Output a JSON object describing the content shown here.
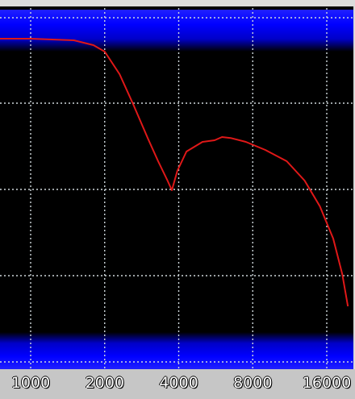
{
  "chart_data": {
    "type": "line",
    "x_scale": "log",
    "x_tick_labels": [
      "1000",
      "2000",
      "4000",
      "8000",
      "16000"
    ],
    "x_ticks": [
      1000,
      2000,
      4000,
      8000,
      16000
    ],
    "xlim": [
      700,
      20000
    ],
    "grid": true,
    "colors": {
      "background": "#000000",
      "grid": "#cfd8dc",
      "curve": "#e01818",
      "band": "#0000ff",
      "axis_strip": "#c6c6c6"
    },
    "series": [
      {
        "values": [
          {
            "x": 700,
            "y": 0.93
          },
          {
            "x": 1000,
            "y": 0.93
          },
          {
            "x": 1500,
            "y": 0.925
          },
          {
            "x": 1800,
            "y": 0.91
          },
          {
            "x": 2000,
            "y": 0.89
          },
          {
            "x": 2300,
            "y": 0.82
          },
          {
            "x": 2600,
            "y": 0.73
          },
          {
            "x": 3000,
            "y": 0.62
          },
          {
            "x": 3300,
            "y": 0.55
          },
          {
            "x": 3600,
            "y": 0.49
          },
          {
            "x": 3750,
            "y": 0.46
          },
          {
            "x": 3950,
            "y": 0.52
          },
          {
            "x": 4300,
            "y": 0.58
          },
          {
            "x": 5000,
            "y": 0.61
          },
          {
            "x": 5600,
            "y": 0.615
          },
          {
            "x": 6000,
            "y": 0.625
          },
          {
            "x": 6500,
            "y": 0.622
          },
          {
            "x": 7500,
            "y": 0.61
          },
          {
            "x": 9000,
            "y": 0.585
          },
          {
            "x": 11000,
            "y": 0.55
          },
          {
            "x": 13000,
            "y": 0.49
          },
          {
            "x": 15000,
            "y": 0.41
          },
          {
            "x": 17000,
            "y": 0.31
          },
          {
            "x": 18500,
            "y": 0.2
          },
          {
            "x": 19500,
            "y": 0.1
          }
        ]
      }
    ]
  }
}
